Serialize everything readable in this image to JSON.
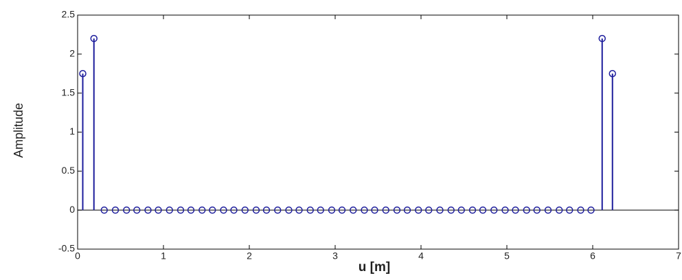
{
  "chart_data": {
    "type": "stem",
    "xlabel": "u [m]",
    "ylabel": "Amplitude",
    "x": [
      0.06,
      0.19,
      0.31,
      0.44,
      0.57,
      0.69,
      0.82,
      0.94,
      1.07,
      1.2,
      1.32,
      1.45,
      1.57,
      1.7,
      1.82,
      1.95,
      2.08,
      2.2,
      2.33,
      2.46,
      2.58,
      2.71,
      2.83,
      2.96,
      3.08,
      3.21,
      3.34,
      3.46,
      3.59,
      3.72,
      3.84,
      3.97,
      4.09,
      4.22,
      4.35,
      4.47,
      4.6,
      4.72,
      4.85,
      4.98,
      5.1,
      5.23,
      5.35,
      5.48,
      5.61,
      5.73,
      5.86,
      5.98,
      6.11,
      6.23
    ],
    "values": [
      1.75,
      2.2,
      0,
      0,
      0,
      0,
      0,
      0,
      0,
      0,
      0,
      0,
      0,
      0,
      0,
      0,
      0,
      0,
      0,
      0,
      0,
      0,
      0,
      0,
      0,
      0,
      0,
      0,
      0,
      0,
      0,
      0,
      0,
      0,
      0,
      0,
      0,
      0,
      0,
      0,
      0,
      0,
      0,
      0,
      0,
      0,
      0,
      0,
      2.2,
      1.75
    ],
    "color": "#1c1c9c",
    "xlim": [
      0,
      7
    ],
    "xticks": [
      0,
      1,
      2,
      3,
      4,
      5,
      6,
      7
    ],
    "ylim": [
      -0.5,
      2.5
    ],
    "yticks": [
      -0.5,
      0,
      0.5,
      1,
      1.5,
      2,
      2.5
    ]
  }
}
